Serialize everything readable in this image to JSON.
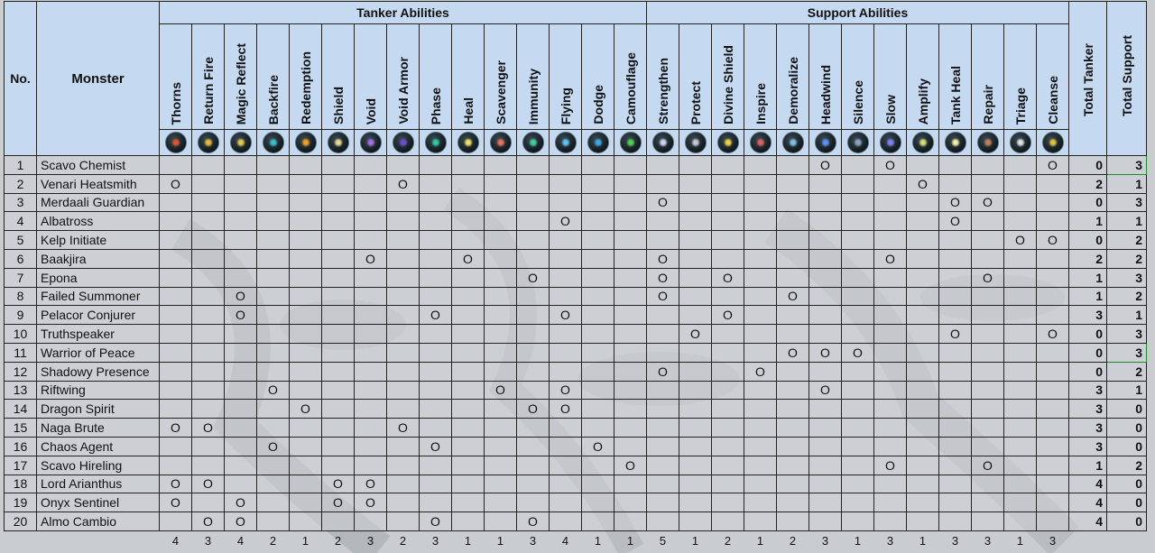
{
  "headers": {
    "no": "No.",
    "monster": "Monster",
    "tanker_group": "Tanker Abilities",
    "support_group": "Support Abilities",
    "total_tanker": "Total Tanker",
    "total_support": "Total Support"
  },
  "tanker_abilities": [
    {
      "name": "Thorns",
      "icon": "thorns-icon",
      "color": "#e0562a"
    },
    {
      "name": "Return Fire",
      "icon": "return-fire-icon",
      "color": "#e8b83a"
    },
    {
      "name": "Magic Reflect",
      "icon": "magic-reflect-icon",
      "color": "#e6c84a"
    },
    {
      "name": "Backfire",
      "icon": "backfire-icon",
      "color": "#3ac0c8"
    },
    {
      "name": "Redemption",
      "icon": "redemption-icon",
      "color": "#f0a020"
    },
    {
      "name": "Shield",
      "icon": "shield-icon",
      "color": "#e8d890"
    },
    {
      "name": "Void",
      "icon": "void-icon",
      "color": "#a070e0"
    },
    {
      "name": "Void Armor",
      "icon": "void-armor-icon",
      "color": "#6a50d0"
    },
    {
      "name": "Phase",
      "icon": "phase-icon",
      "color": "#30c8a0"
    },
    {
      "name": "Heal",
      "icon": "heal-icon",
      "color": "#f0e060"
    },
    {
      "name": "Scavenger",
      "icon": "scavenger-icon",
      "color": "#e87060"
    },
    {
      "name": "Immunity",
      "icon": "immunity-icon",
      "color": "#40d0a0"
    },
    {
      "name": "Flying",
      "icon": "flying-icon",
      "color": "#60c0f0"
    },
    {
      "name": "Dodge",
      "icon": "dodge-icon",
      "color": "#40a8e0"
    },
    {
      "name": "Camouflage",
      "icon": "camouflage-icon",
      "color": "#50d050"
    }
  ],
  "support_abilities": [
    {
      "name": "Strengthen",
      "icon": "strengthen-icon",
      "color": "#d0d0f0"
    },
    {
      "name": "Protect",
      "icon": "protect-icon",
      "color": "#c0c8d0"
    },
    {
      "name": "Divine Shield",
      "icon": "divine-shield-icon",
      "color": "#f0d040"
    },
    {
      "name": "Inspire",
      "icon": "inspire-icon",
      "color": "#e06060"
    },
    {
      "name": "Demoralize",
      "icon": "demoralize-icon",
      "color": "#80c0e0"
    },
    {
      "name": "Headwind",
      "icon": "headwind-icon",
      "color": "#6090f0"
    },
    {
      "name": "Silence",
      "icon": "silence-icon",
      "color": "#90a0c0"
    },
    {
      "name": "Slow",
      "icon": "slow-icon",
      "color": "#8080f0"
    },
    {
      "name": "Amplify",
      "icon": "amplify-icon",
      "color": "#d0e070"
    },
    {
      "name": "Tank Heal",
      "icon": "tank-heal-icon",
      "color": "#f0f0a0"
    },
    {
      "name": "Repair",
      "icon": "repair-icon",
      "color": "#c08060"
    },
    {
      "name": "Triage",
      "icon": "triage-icon",
      "color": "#e0e0e0"
    },
    {
      "name": "Cleanse",
      "icon": "cleanse-icon",
      "color": "#e0c040"
    }
  ],
  "mark_symbol": "O",
  "rows": [
    {
      "no": "1",
      "name": "Scavo Chemist",
      "marks": [
        20,
        22,
        27
      ],
      "tank": "0",
      "support": "3"
    },
    {
      "no": "2",
      "name": "Venari Heatsmith",
      "marks": [
        0,
        7,
        23
      ],
      "tank": "2",
      "support": "1"
    },
    {
      "no": "3",
      "name": "Merdaali Guardian",
      "marks": [
        15,
        24,
        25
      ],
      "tank": "0",
      "support": "3"
    },
    {
      "no": "4",
      "name": "Albatross",
      "marks": [
        12,
        24
      ],
      "tank": "1",
      "support": "1"
    },
    {
      "no": "5",
      "name": "Kelp Initiate",
      "marks": [
        26,
        27
      ],
      "tank": "0",
      "support": "2"
    },
    {
      "no": "6",
      "name": "Baakjira",
      "marks": [
        6,
        9,
        15,
        22
      ],
      "tank": "2",
      "support": "2"
    },
    {
      "no": "7",
      "name": "Epona",
      "marks": [
        11,
        15,
        17,
        25
      ],
      "tank": "1",
      "support": "3"
    },
    {
      "no": "8",
      "name": "Failed Summoner",
      "marks": [
        2,
        15,
        19
      ],
      "tank": "1",
      "support": "2"
    },
    {
      "no": "9",
      "name": "Pelacor Conjurer",
      "marks": [
        2,
        8,
        12,
        17
      ],
      "tank": "3",
      "support": "1"
    },
    {
      "no": "10",
      "name": "Truthspeaker",
      "marks": [
        16,
        24,
        27
      ],
      "tank": "0",
      "support": "3"
    },
    {
      "no": "11",
      "name": "Warrior of Peace",
      "marks": [
        19,
        20,
        21
      ],
      "tank": "0",
      "support": "3"
    },
    {
      "no": "12",
      "name": "Shadowy Presence",
      "marks": [
        15,
        18
      ],
      "tank": "0",
      "support": "2"
    },
    {
      "no": "13",
      "name": "Riftwing",
      "marks": [
        3,
        10,
        12,
        20
      ],
      "tank": "3",
      "support": "1"
    },
    {
      "no": "14",
      "name": "Dragon Spirit",
      "marks": [
        4,
        11,
        12
      ],
      "tank": "3",
      "support": "0"
    },
    {
      "no": "15",
      "name": "Naga Brute",
      "marks": [
        0,
        1,
        7
      ],
      "tank": "3",
      "support": "0"
    },
    {
      "no": "16",
      "name": "Chaos Agent",
      "marks": [
        3,
        8,
        13
      ],
      "tank": "3",
      "support": "0"
    },
    {
      "no": "17",
      "name": "Scavo Hireling",
      "marks": [
        14,
        22,
        25
      ],
      "tank": "1",
      "support": "2"
    },
    {
      "no": "18",
      "name": "Lord Arianthus",
      "marks": [
        0,
        1,
        5,
        6
      ],
      "tank": "4",
      "support": "0"
    },
    {
      "no": "19",
      "name": "Onyx Sentinel",
      "marks": [
        0,
        2,
        5,
        6
      ],
      "tank": "4",
      "support": "0"
    },
    {
      "no": "20",
      "name": "Almo Cambio",
      "marks": [
        1,
        2,
        8,
        11
      ],
      "tank": "4",
      "support": "0"
    }
  ],
  "column_totals": [
    "4",
    "3",
    "4",
    "2",
    "1",
    "2",
    "3",
    "2",
    "3",
    "1",
    "1",
    "3",
    "4",
    "1",
    "1",
    "5",
    "1",
    "2",
    "1",
    "2",
    "3",
    "1",
    "3",
    "1",
    "3",
    "3",
    "1",
    "3"
  ]
}
